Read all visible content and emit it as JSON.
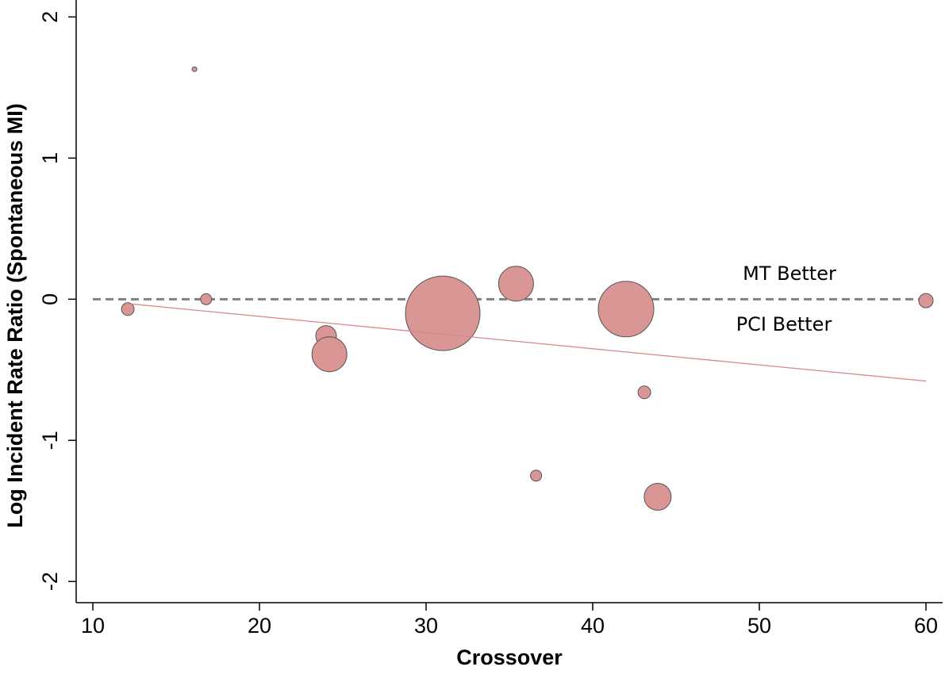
{
  "chart_data": {
    "type": "scatter",
    "x_label": "Crossover",
    "y_label": "Log Incident Rate Ratio (Spontaneous MI)",
    "xlim": [
      9,
      61
    ],
    "xticks": [
      10,
      20,
      30,
      40,
      50,
      60
    ],
    "ylim": [
      -2.15,
      2.12
    ],
    "yticks": [
      -2,
      -1,
      0,
      1,
      2
    ],
    "series": [
      {
        "color": "#d99694",
        "x": [
          12.1,
          16.1,
          16.8,
          24.0,
          24.2,
          31.0,
          35.4,
          36.6,
          42.0,
          43.1,
          43.9,
          60.0
        ],
        "values": [
          -0.07,
          1.63,
          0.0,
          -0.26,
          -0.39,
          -0.1,
          0.11,
          -1.25,
          -0.07,
          -0.66,
          -1.4,
          -0.01
        ],
        "sizes": [
          8,
          3,
          7,
          13,
          22,
          47,
          22,
          7,
          35,
          8,
          17,
          9
        ]
      }
    ],
    "reference_line": {
      "value": 0,
      "x": [
        10,
        60
      ],
      "color": "#808080"
    },
    "regression_line": {
      "x": [
        12,
        60
      ],
      "values": [
        -0.03,
        -0.58
      ],
      "color": "#d88a8a"
    },
    "annotations": [
      "MT Better",
      "PCI Better"
    ]
  }
}
